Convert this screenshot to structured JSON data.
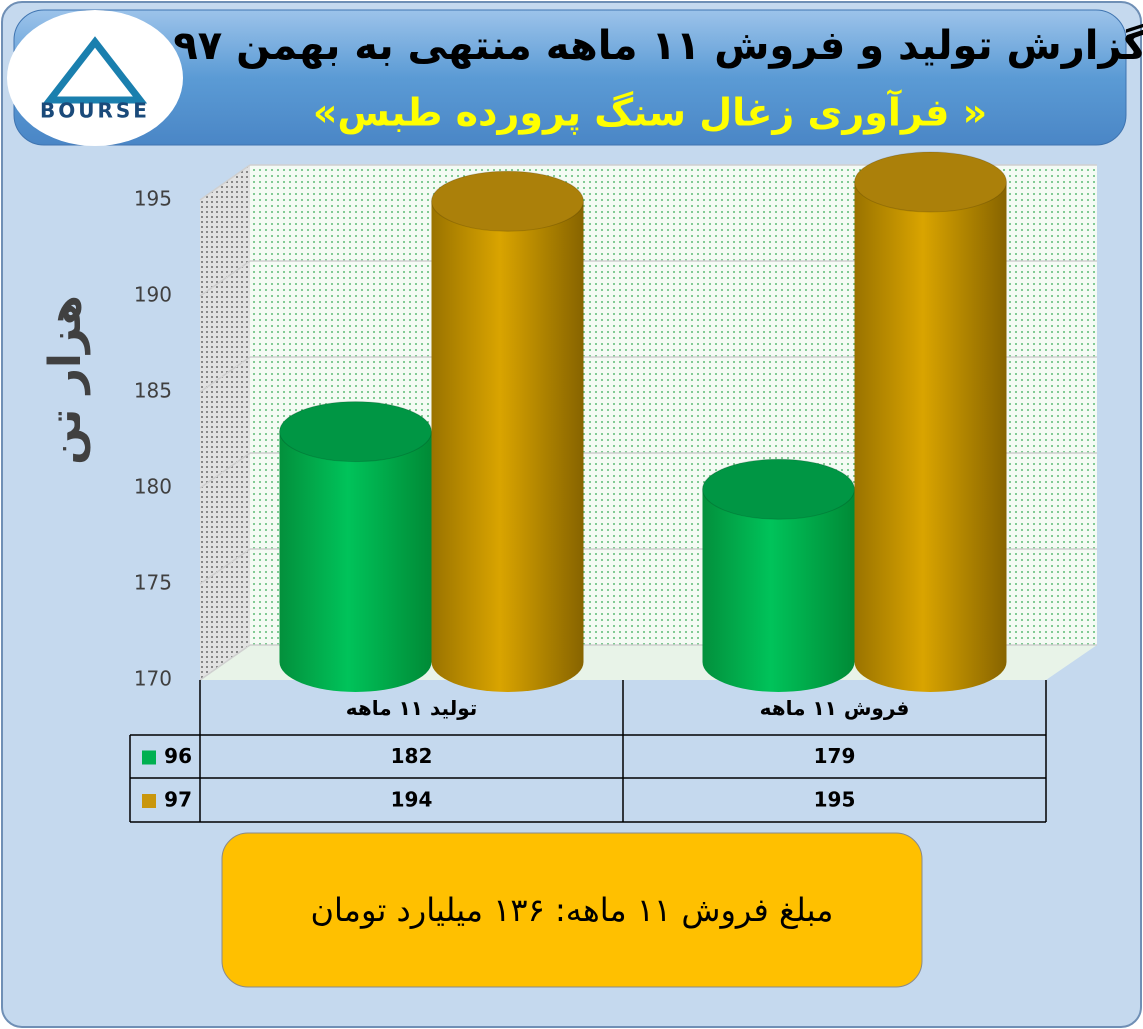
{
  "logo": "BOURSE",
  "chart_data": {
    "type": "bar",
    "title": "گزارش تولید و فروش ۱۱ ماهه منتهی به بهمن ۹۷",
    "subtitle": "«فرآوری زغال سنگ پرورده طبس »",
    "y_label": "هزار تن",
    "categories": [
      "تولید ۱۱ ماهه",
      "فروش ۱۱ ماهه"
    ],
    "series": [
      {
        "name": "96",
        "color": "#00b050",
        "values": [
          182,
          179
        ]
      },
      {
        "name": "97",
        "color": "#c9960c",
        "values": [
          194,
          195
        ]
      }
    ],
    "ylim": [
      170,
      195
    ],
    "yticks": [
      170,
      175,
      180,
      185,
      190,
      195
    ],
    "grid": true,
    "annotation": "مبلغ فروش ۱۱ ماهه: ۱۳۶ میلیارد تومان"
  }
}
